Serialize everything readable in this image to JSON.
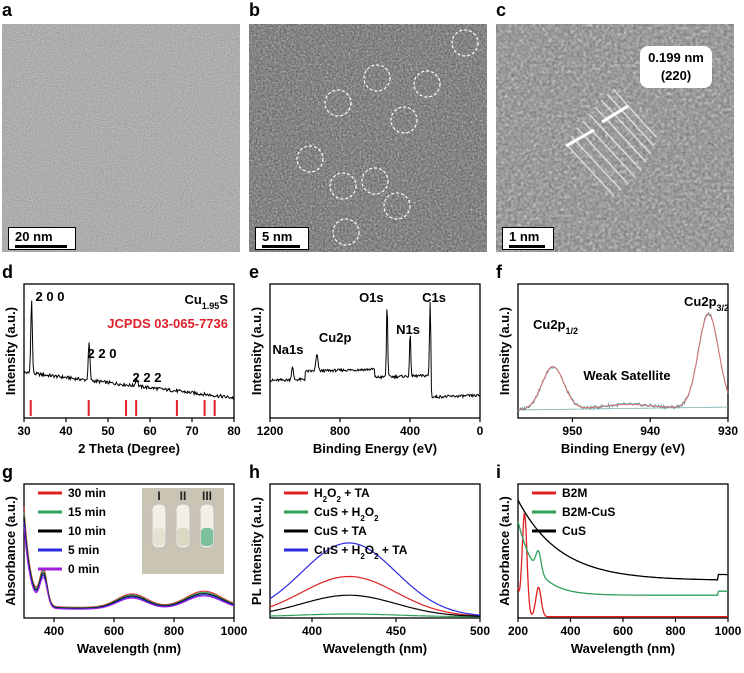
{
  "panels": {
    "a": {
      "letter": "a",
      "scale_label": "20 nm"
    },
    "b": {
      "letter": "b",
      "scale_label": "5 nm"
    },
    "c": {
      "letter": "c",
      "scale_label": "1 nm",
      "annotation_1": "0.199 nm",
      "annotation_2": "(220)"
    },
    "d": {
      "letter": "d"
    },
    "e": {
      "letter": "e"
    },
    "f": {
      "letter": "f"
    },
    "g": {
      "letter": "g",
      "inset_labels": [
        "I",
        "II",
        "III"
      ]
    },
    "h": {
      "letter": "h"
    },
    "i": {
      "letter": "i"
    }
  },
  "chart_data": [
    {
      "id": "d",
      "type": "line",
      "xlabel": "2 Theta (Degree)",
      "ylabel": "Intensity (a.u.)",
      "xlim": [
        30,
        80
      ],
      "xticks": [
        30,
        40,
        50,
        60,
        70,
        80
      ],
      "title_formula": {
        "base": "Cu",
        "sub": "1.95",
        "tail": "S"
      },
      "reference": "JCPDS 03-065-7736",
      "ref_color": "#e0202a",
      "ref_lines": [
        31.6,
        45.4,
        54.3,
        56.7,
        66.4,
        73.0,
        75.4
      ],
      "peak_labels": [
        {
          "x": 31.8,
          "text": "2 0 0"
        },
        {
          "x": 45.6,
          "text": "2 2 0"
        },
        {
          "x": 56.8,
          "text": "2 2 2"
        }
      ]
    },
    {
      "id": "e",
      "type": "line",
      "xlabel": "Binding Energy (eV)",
      "ylabel": "Intensity (a.u.)",
      "xlim": [
        1200,
        0
      ],
      "xticks": [
        1200,
        800,
        400,
        0
      ],
      "peaks": [
        {
          "x": 1072,
          "text": "Na1s"
        },
        {
          "x": 932,
          "text": "Cu2p"
        },
        {
          "x": 531,
          "text": "O1s"
        },
        {
          "x": 399,
          "text": "N1s"
        },
        {
          "x": 285,
          "text": "C1s"
        }
      ]
    },
    {
      "id": "f",
      "type": "line",
      "xlabel": "Binding Energy (eV)",
      "ylabel": "Intensity (a.u.)",
      "xlim": [
        957,
        930
      ],
      "xticks": [
        950,
        940,
        930
      ],
      "peaks": [
        {
          "x": 952.5,
          "base": "Cu2p",
          "sub": "1/2"
        },
        {
          "x": 932.5,
          "base": "Cu2p",
          "sub": "3/2"
        }
      ],
      "satellite_label": "Weak Satellite",
      "colors": {
        "data": "#5a9ea0",
        "fit": "#e07070",
        "background": "#7ab0b0"
      }
    },
    {
      "id": "g",
      "type": "line",
      "xlabel": "Wavelength (nm)",
      "ylabel": "Absorbance (a.u.)",
      "xlim": [
        300,
        1000
      ],
      "xticks": [
        400,
        600,
        800,
        1000
      ],
      "series": [
        {
          "name": "30 min",
          "color": "#e02020"
        },
        {
          "name": "15 min",
          "color": "#2ea05a"
        },
        {
          "name": "10 min",
          "color": "#000000"
        },
        {
          "name": "5 min",
          "color": "#2a2ae0"
        },
        {
          "name": "0 min",
          "color": "#a020e0"
        }
      ]
    },
    {
      "id": "h",
      "type": "line",
      "xlabel": "Wavelength (nm)",
      "ylabel": "PL Intensity (a.u.)",
      "xlim": [
        375,
        500
      ],
      "xticks": [
        400,
        450,
        500
      ],
      "series": [
        {
          "name": "H2O2 + TA",
          "parts": [
            [
              "H",
              "n"
            ],
            [
              "2",
              "sub"
            ],
            [
              "O",
              "n"
            ],
            [
              "2",
              "sub"
            ],
            [
              " + TA",
              "n"
            ]
          ],
          "color": "#e02020",
          "peak": 0.3
        },
        {
          "name": "CuS + H2O2",
          "parts": [
            [
              "CuS + H",
              "n"
            ],
            [
              "2",
              "sub"
            ],
            [
              "O",
              "n"
            ],
            [
              "2",
              "sub"
            ]
          ],
          "color": "#2ea05a",
          "peak": 0.02
        },
        {
          "name": "CuS + TA",
          "parts": [
            [
              "CuS + TA",
              "n"
            ]
          ],
          "color": "#000000",
          "peak": 0.16
        },
        {
          "name": "CuS + H2O2 + TA",
          "parts": [
            [
              "CuS + H",
              "n"
            ],
            [
              "2",
              "sub"
            ],
            [
              "O",
              "n"
            ],
            [
              "2",
              "sub"
            ],
            [
              " + TA",
              "n"
            ]
          ],
          "color": "#2a2ae0",
          "peak": 0.55
        }
      ]
    },
    {
      "id": "i",
      "type": "line",
      "xlabel": "Wavelength (nm)",
      "ylabel": "Absorbance (a.u.)",
      "xlim": [
        200,
        1000
      ],
      "xticks": [
        200,
        400,
        600,
        800,
        1000
      ],
      "series": [
        {
          "name": "B2M",
          "color": "#e02020"
        },
        {
          "name": "B2M-CuS",
          "color": "#2ea05a"
        },
        {
          "name": "CuS",
          "color": "#000000"
        }
      ]
    }
  ]
}
